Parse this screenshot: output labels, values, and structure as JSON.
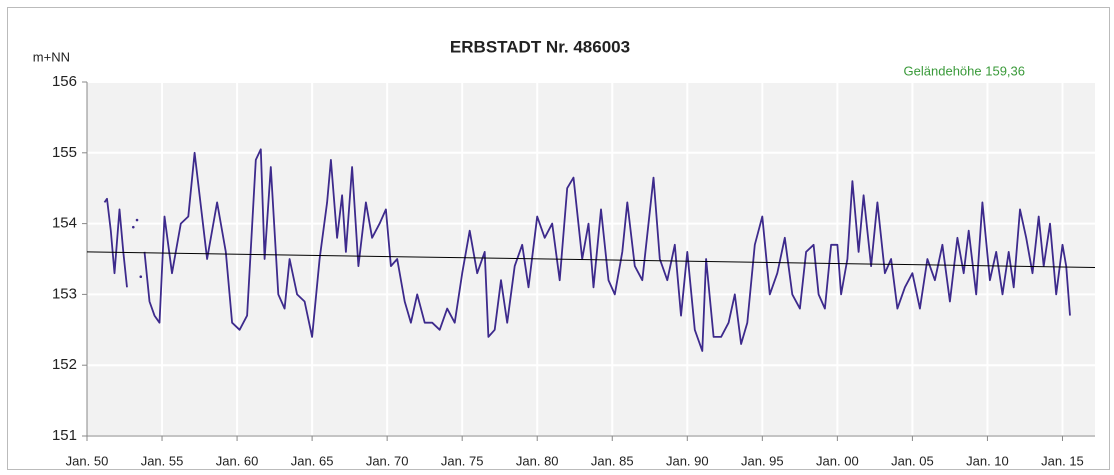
{
  "chart_data": {
    "type": "line",
    "title": "ERBSTADT  Nr. 486003",
    "ylabel": "m+NN",
    "annotation": "Geländehöhe 159,36",
    "annotation_color": "#3a9a3a",
    "background": "#f2f2f2",
    "grid": true,
    "x": [
      "1951-03",
      "1951-05",
      "1951-08",
      "1951-11",
      "1952-03",
      "1952-06",
      "1952-09",
      "1952-11",
      "1953-02",
      "1953-04",
      "1953-05",
      "1953-06",
      "1953-08",
      "1953-09",
      "1953-11",
      "1954-03",
      "1954-07",
      "1954-11",
      "1955-03",
      "1955-09",
      "1956-04",
      "1956-10",
      "1957-03",
      "1958-01",
      "1958-09",
      "1959-04",
      "1959-09",
      "1960-03",
      "1960-09",
      "1961-04",
      "1961-08",
      "1961-11",
      "1962-04",
      "1962-10",
      "1963-03",
      "1963-07",
      "1964-01",
      "1964-07",
      "1965-01",
      "1965-07",
      "1966-01",
      "1966-04",
      "1966-09",
      "1967-01",
      "1967-04",
      "1967-09",
      "1968-02",
      "1968-08",
      "1969-01",
      "1969-07",
      "1969-12",
      "1970-04",
      "1970-09",
      "1971-03",
      "1971-08",
      "1972-01",
      "1972-07",
      "1973-01",
      "1973-07",
      "1974-01",
      "1974-07",
      "1975-01",
      "1975-07",
      "1976-01",
      "1976-07",
      "1976-10",
      "1977-03",
      "1977-08",
      "1978-01",
      "1978-07",
      "1979-01",
      "1979-06",
      "1980-01",
      "1980-07",
      "1981-01",
      "1981-07",
      "1982-01",
      "1982-06",
      "1983-01",
      "1983-06",
      "1983-10",
      "1984-04",
      "1984-10",
      "1985-03",
      "1985-09",
      "1986-01",
      "1986-07",
      "1987-01",
      "1987-06",
      "1987-10",
      "1988-03",
      "1988-09",
      "1989-03",
      "1989-08",
      "1990-01",
      "1990-07",
      "1991-01",
      "1991-04",
      "1991-10",
      "1992-04",
      "1992-10",
      "1993-03",
      "1993-08",
      "1994-01",
      "1994-07",
      "1995-01",
      "1995-07",
      "1996-01",
      "1996-07",
      "1997-01",
      "1997-07",
      "1997-12",
      "1998-06",
      "1998-10",
      "1999-03",
      "1999-08",
      "2000-01",
      "2000-04",
      "2000-09",
      "2001-01",
      "2001-06",
      "2001-10",
      "2002-04",
      "2002-09",
      "2003-03",
      "2003-08",
      "2004-01",
      "2004-07",
      "2005-01",
      "2005-07",
      "2006-01",
      "2006-07",
      "2007-01",
      "2007-07",
      "2008-01",
      "2008-06",
      "2008-10",
      "2009-04",
      "2009-09",
      "2010-03",
      "2010-08",
      "2011-01",
      "2011-06",
      "2011-10",
      "2012-03",
      "2012-08",
      "2013-01",
      "2013-06",
      "2013-10",
      "2014-03",
      "2014-08",
      "2015-01",
      "2015-04",
      "2015-07"
    ],
    "series": [
      {
        "color": "#3d2a8c",
        "values": [
          154.3,
          154.35,
          153.9,
          153.3,
          154.2,
          153.6,
          153.1,
          null,
          153.95,
          null,
          154.05,
          null,
          153.25,
          null,
          153.6,
          152.9,
          152.7,
          152.6,
          154.1,
          153.3,
          154.0,
          154.1,
          155.0,
          153.5,
          154.3,
          153.6,
          152.6,
          152.5,
          152.7,
          154.9,
          155.05,
          153.5,
          154.8,
          153.0,
          152.8,
          153.5,
          153.0,
          152.9,
          152.4,
          153.5,
          154.3,
          154.9,
          153.8,
          154.4,
          153.6,
          154.8,
          153.4,
          154.3,
          153.8,
          154.0,
          154.2,
          153.4,
          153.5,
          152.9,
          152.6,
          153.0,
          152.6,
          152.6,
          152.5,
          152.8,
          152.6,
          153.3,
          153.9,
          153.3,
          153.6,
          152.4,
          152.5,
          153.2,
          152.6,
          153.4,
          153.7,
          153.1,
          154.1,
          153.8,
          154.0,
          153.2,
          154.5,
          154.65,
          153.5,
          154.0,
          153.1,
          154.2,
          153.2,
          153.0,
          153.6,
          154.3,
          153.4,
          153.2,
          154.0,
          154.65,
          153.5,
          153.2,
          153.7,
          152.7,
          153.6,
          152.5,
          152.2,
          153.5,
          152.4,
          152.4,
          152.6,
          153.0,
          152.3,
          152.6,
          153.7,
          154.1,
          153.0,
          153.3,
          153.8,
          153.0,
          152.8,
          153.6,
          153.7,
          153.0,
          152.8,
          153.7,
          153.7,
          153.0,
          153.5,
          154.6,
          153.6,
          154.4,
          153.4,
          154.3,
          153.3,
          153.5,
          152.8,
          153.1,
          153.3,
          152.8,
          153.5,
          153.2,
          153.7,
          152.9,
          153.8,
          153.3,
          153.9,
          153.0,
          154.3,
          153.2,
          153.6,
          153.0,
          153.6,
          153.1,
          154.2,
          153.8,
          153.3,
          154.1,
          153.4,
          154.0,
          153.0,
          153.7,
          153.4,
          152.7
        ]
      }
    ],
    "trend": {
      "color": "#000000",
      "x": [
        "1950-01",
        "2017-03"
      ],
      "values": [
        153.6,
        153.38
      ]
    },
    "xlim": [
      "1950-01",
      "2017-03"
    ],
    "xticks": [
      {
        "value": "1950-01",
        "label": "Jan. 50"
      },
      {
        "value": "1955-01",
        "label": "Jan. 55"
      },
      {
        "value": "1960-01",
        "label": "Jan. 60"
      },
      {
        "value": "1965-01",
        "label": "Jan. 65"
      },
      {
        "value": "1970-01",
        "label": "Jan. 70"
      },
      {
        "value": "1975-01",
        "label": "Jan. 75"
      },
      {
        "value": "1980-01",
        "label": "Jan. 80"
      },
      {
        "value": "1985-01",
        "label": "Jan. 85"
      },
      {
        "value": "1990-01",
        "label": "Jan. 90"
      },
      {
        "value": "1995-01",
        "label": "Jan. 95"
      },
      {
        "value": "2000-01",
        "label": "Jan. 00"
      },
      {
        "value": "2005-01",
        "label": "Jan. 05"
      },
      {
        "value": "2010-01",
        "label": "Jan. 10"
      },
      {
        "value": "2015-01",
        "label": "Jan. 15"
      }
    ],
    "ylim": [
      151,
      156
    ],
    "yticks": [
      151,
      152,
      153,
      154,
      155,
      156
    ]
  }
}
